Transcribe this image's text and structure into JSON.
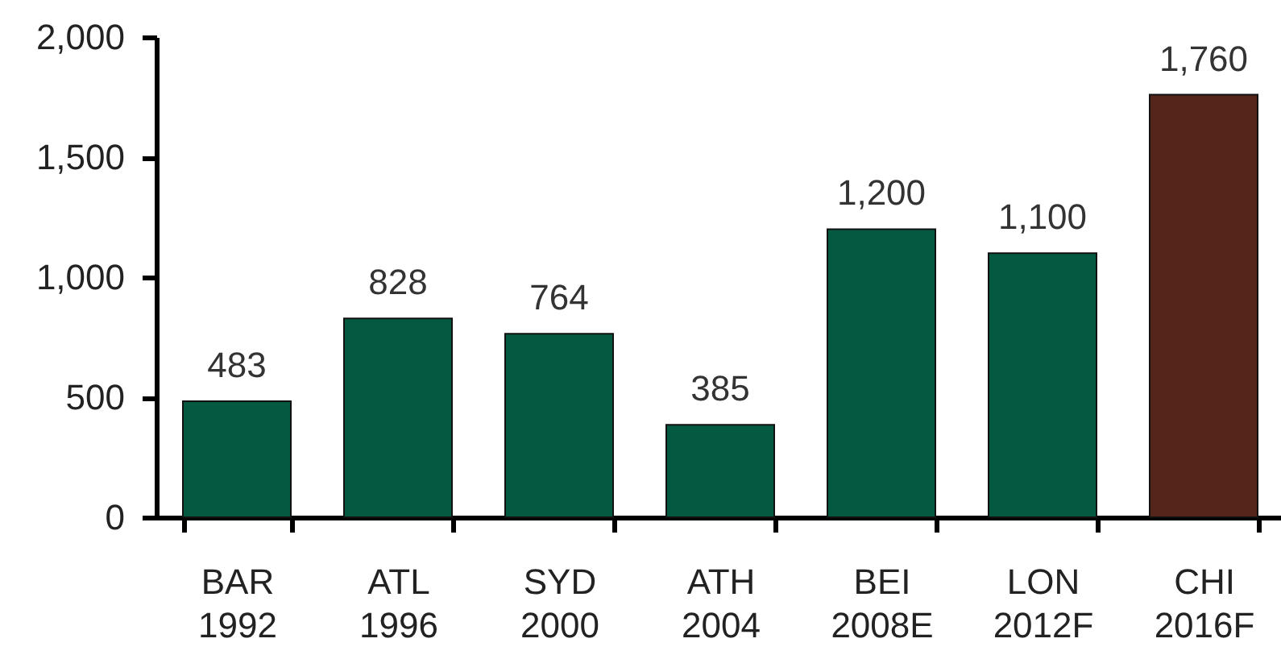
{
  "chart_data": {
    "type": "bar",
    "categories": [
      "BAR\n1992",
      "ATL\n1996",
      "SYD\n2000",
      "ATH\n2004",
      "BEI\n2008E",
      "LON\n2012F",
      "CHI\n2016F"
    ],
    "values": [
      483,
      828,
      764,
      385,
      1200,
      1100,
      1760
    ],
    "value_labels": [
      "483",
      "828",
      "764",
      "385",
      "1,200",
      "1,100",
      "1,760"
    ],
    "colors": [
      "#045a40",
      "#045a40",
      "#045a40",
      "#045a40",
      "#045a40",
      "#045a40",
      "#55241a"
    ],
    "ylim": [
      0,
      2000
    ],
    "yticks": [
      0,
      500,
      {
        "value": 1000,
        "label": "1,000"
      },
      {
        "value": 1500,
        "label": "1,500"
      },
      {
        "value": 2000,
        "label": "2,000"
      }
    ],
    "grid": false,
    "legend": false
  }
}
